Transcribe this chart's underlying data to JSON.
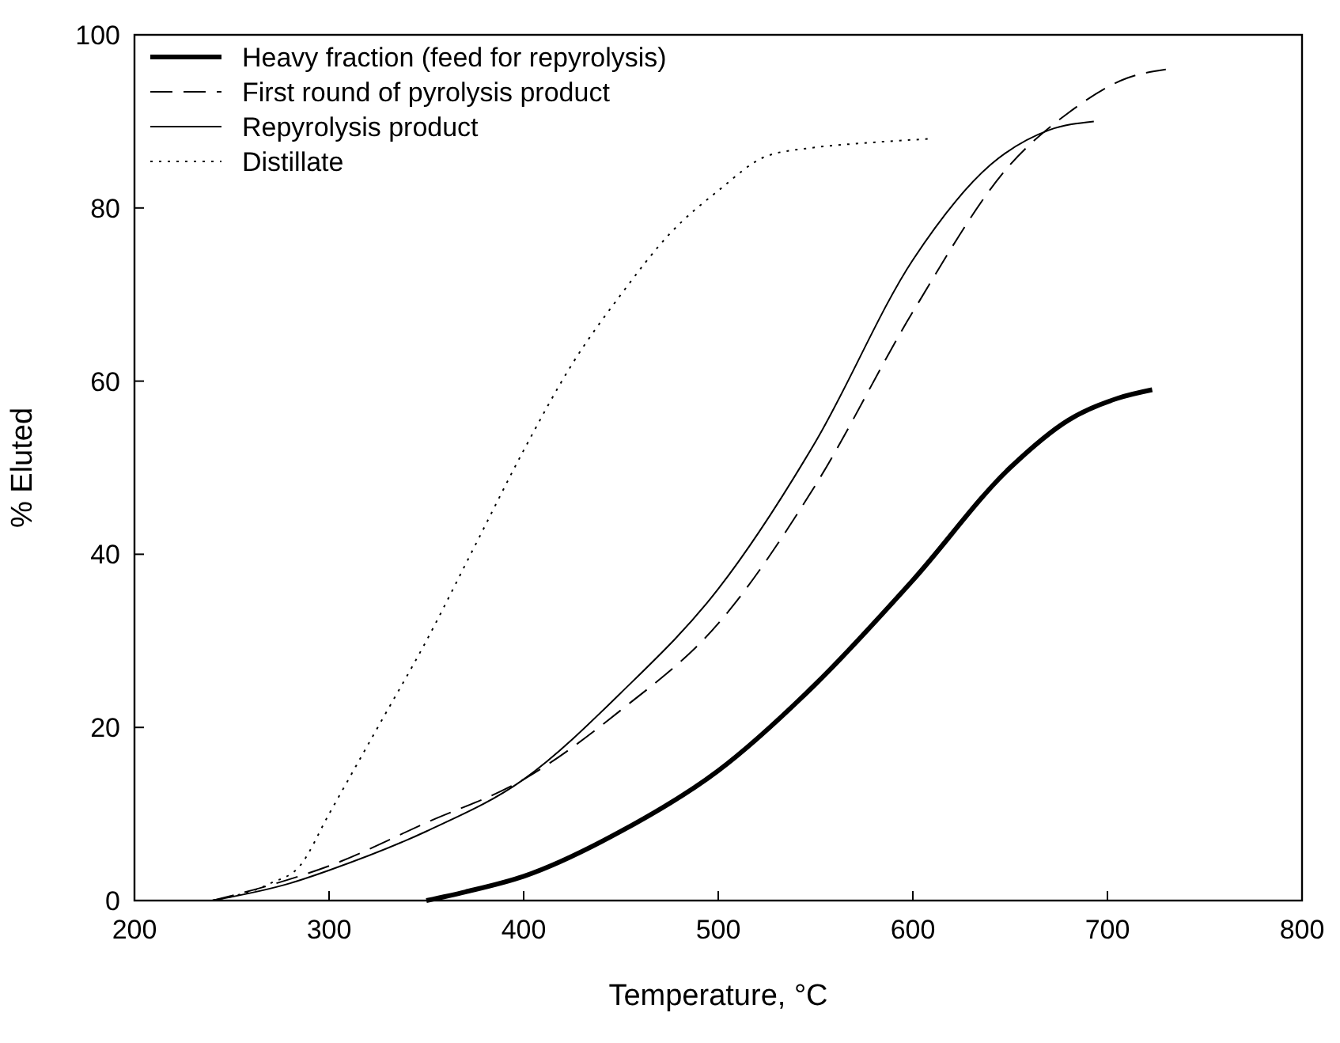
{
  "chart_data": {
    "type": "line",
    "xlabel": "Temperature, °C",
    "ylabel": "% Eluted",
    "xlim": [
      200,
      800
    ],
    "ylim": [
      0,
      100
    ],
    "xticks": [
      200,
      300,
      400,
      500,
      600,
      700,
      800
    ],
    "yticks": [
      0,
      20,
      40,
      60,
      80,
      100
    ],
    "grid": false,
    "legend": "top left",
    "marker": "none",
    "series": [
      {
        "name": "Heavy fraction (feed for repyrolysis)",
        "color": "#000000",
        "line_style": "solid",
        "x": [
          350,
          370,
          400,
          450,
          500,
          550,
          600,
          650,
          680,
          705,
          723
        ],
        "values": [
          0,
          1,
          2.8,
          8,
          15,
          25,
          37,
          50,
          55.5,
          58,
          59
        ]
      },
      {
        "name": "First round of pyrolysis product",
        "color": "#000000",
        "line_style": "dashed",
        "x": [
          240,
          270,
          300,
          350,
          400,
          450,
          500,
          550,
          600,
          650,
          680,
          710,
          730
        ],
        "values": [
          0,
          1.8,
          4,
          9,
          14,
          22,
          32,
          48,
          68,
          85,
          91,
          95,
          96
        ]
      },
      {
        "name": "Repyrolysis product",
        "color": "#000000",
        "line_style": "solid",
        "x": [
          240,
          280,
          300,
          350,
          400,
          450,
          500,
          550,
          600,
          640,
          670,
          693
        ],
        "values": [
          0,
          2,
          3.5,
          8,
          14,
          24,
          36,
          53,
          74,
          85,
          89,
          90
        ]
      },
      {
        "name": "Distillate",
        "color": "#000000",
        "line_style": "dotted",
        "x": [
          240,
          270,
          285,
          300,
          325,
          350,
          375,
          400,
          425,
          450,
          475,
          500,
          525,
          550,
          575,
          610
        ],
        "values": [
          0,
          2,
          4,
          10,
          20,
          30,
          41,
          52,
          62,
          70,
          77,
          82,
          86,
          87,
          87.5,
          88
        ]
      }
    ]
  }
}
